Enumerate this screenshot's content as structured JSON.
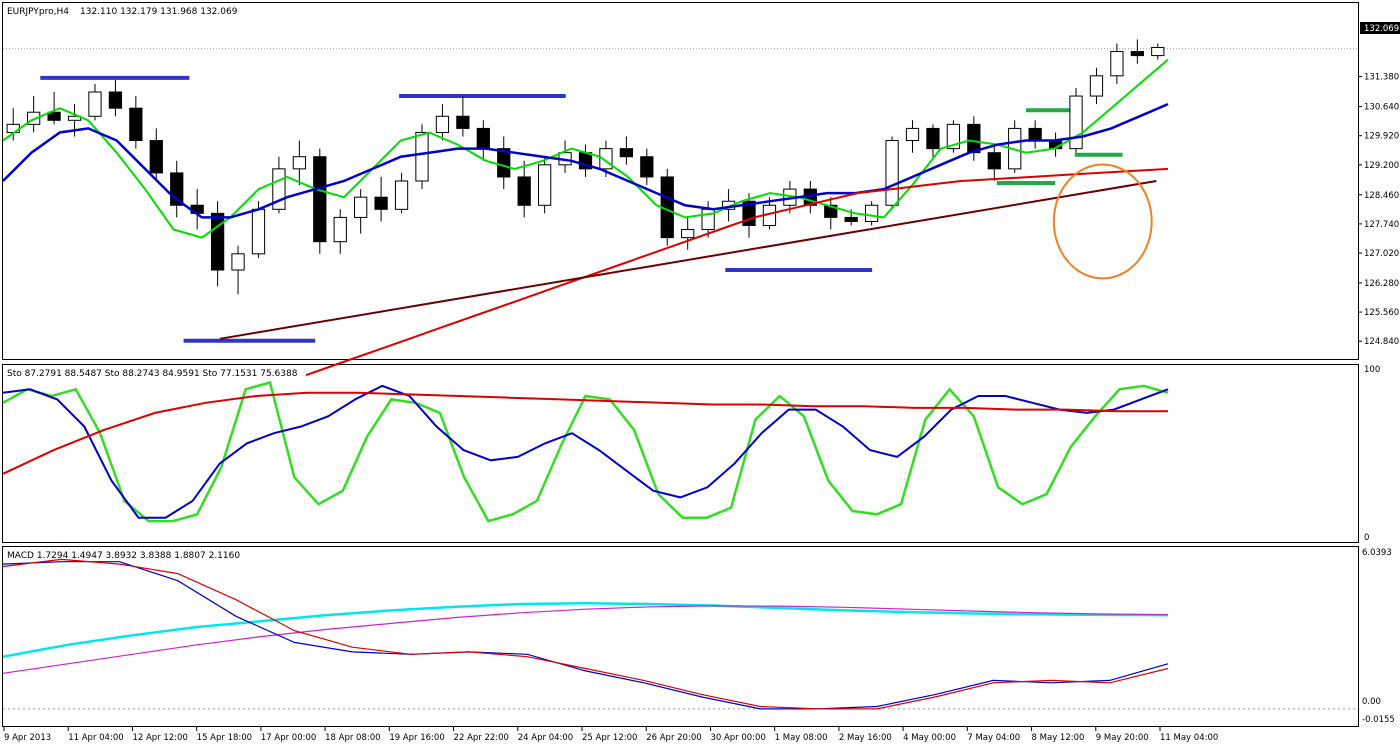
{
  "chart_data": [
    {
      "type": "candlestick",
      "title": "EURJPYpro,H4  132.110 132.179 131.968 132.069",
      "symbol": "EURJPYpro,H4",
      "ohlc_header": "132.110 132.179 131.968 132.069",
      "last_price": "132.069",
      "ylim": [
        124.4,
        133.2
      ],
      "y_ticks": [
        "131.380",
        "130.640",
        "129.920",
        "129.200",
        "128.460",
        "127.740",
        "127.020",
        "126.280",
        "125.560",
        "124.840"
      ],
      "ohlc": [
        [
          130.0,
          130.6,
          129.8,
          130.2
        ],
        [
          130.2,
          130.9,
          130.0,
          130.5
        ],
        [
          130.5,
          131.0,
          130.2,
          130.3
        ],
        [
          130.3,
          130.7,
          129.9,
          130.4
        ],
        [
          130.4,
          131.2,
          130.3,
          131.0
        ],
        [
          131.0,
          131.3,
          130.4,
          130.6
        ],
        [
          130.6,
          130.9,
          129.6,
          129.8
        ],
        [
          129.8,
          130.1,
          128.8,
          129.0
        ],
        [
          129.0,
          129.3,
          127.9,
          128.2
        ],
        [
          128.2,
          128.6,
          127.6,
          128.0
        ],
        [
          128.0,
          128.3,
          126.2,
          126.6
        ],
        [
          126.6,
          127.2,
          126.0,
          127.0
        ],
        [
          127.0,
          128.3,
          126.9,
          128.1
        ],
        [
          128.1,
          129.4,
          128.0,
          129.1
        ],
        [
          129.1,
          129.8,
          128.7,
          129.4
        ],
        [
          129.4,
          129.6,
          127.0,
          127.3
        ],
        [
          127.3,
          128.1,
          127.0,
          127.9
        ],
        [
          127.9,
          128.6,
          127.5,
          128.4
        ],
        [
          128.4,
          128.9,
          127.8,
          128.1
        ],
        [
          128.1,
          129.0,
          128.0,
          128.8
        ],
        [
          128.8,
          130.2,
          128.6,
          130.0
        ],
        [
          130.0,
          130.7,
          129.8,
          130.4
        ],
        [
          130.4,
          130.9,
          129.9,
          130.1
        ],
        [
          130.1,
          130.3,
          129.3,
          129.6
        ],
        [
          129.6,
          129.9,
          128.6,
          128.9
        ],
        [
          128.9,
          129.3,
          127.9,
          128.2
        ],
        [
          128.2,
          129.4,
          128.0,
          129.2
        ],
        [
          129.2,
          129.8,
          129.0,
          129.5
        ],
        [
          129.5,
          129.7,
          128.9,
          129.1
        ],
        [
          129.1,
          129.8,
          128.9,
          129.6
        ],
        [
          129.6,
          129.9,
          129.2,
          129.4
        ],
        [
          129.4,
          129.6,
          128.7,
          128.9
        ],
        [
          128.9,
          129.1,
          127.2,
          127.4
        ],
        [
          127.4,
          127.9,
          127.1,
          127.6
        ],
        [
          127.6,
          128.3,
          127.4,
          128.1
        ],
        [
          128.1,
          128.6,
          127.8,
          128.3
        ],
        [
          128.3,
          128.5,
          127.4,
          127.7
        ],
        [
          127.7,
          128.4,
          127.6,
          128.2
        ],
        [
          128.2,
          128.8,
          128.0,
          128.6
        ],
        [
          128.6,
          128.8,
          128.0,
          128.2
        ],
        [
          128.2,
          128.4,
          127.6,
          127.9
        ],
        [
          127.9,
          128.1,
          127.7,
          127.8
        ],
        [
          127.8,
          128.3,
          127.7,
          128.2
        ],
        [
          128.2,
          129.9,
          128.1,
          129.8
        ],
        [
          129.8,
          130.3,
          129.5,
          130.1
        ],
        [
          130.1,
          130.2,
          129.4,
          129.6
        ],
        [
          129.6,
          130.3,
          129.5,
          130.2
        ],
        [
          130.2,
          130.4,
          129.3,
          129.5
        ],
        [
          129.5,
          129.7,
          128.8,
          129.1
        ],
        [
          129.1,
          130.3,
          129.0,
          130.1
        ],
        [
          130.1,
          130.3,
          129.6,
          129.8
        ],
        [
          129.8,
          130.0,
          129.4,
          129.6
        ],
        [
          129.6,
          131.1,
          129.5,
          130.9
        ],
        [
          130.9,
          131.6,
          130.7,
          131.4
        ],
        [
          131.4,
          132.2,
          131.2,
          132.0
        ],
        [
          132.0,
          132.3,
          131.7,
          131.9
        ],
        [
          131.9,
          132.2,
          131.8,
          132.1
        ]
      ],
      "series": [
        {
          "name": "",
          "color": "#00dd00",
          "values": [
            129.8,
            130.3,
            130.6,
            130.3,
            129.5,
            128.6,
            127.6,
            127.4,
            127.9,
            128.6,
            128.9,
            128.6,
            128.4,
            129.1,
            129.8,
            130.0,
            129.7,
            129.3,
            129.1,
            129.3,
            129.6,
            129.4,
            128.9,
            128.2,
            127.9,
            128.0,
            128.3,
            128.5,
            128.4,
            128.2,
            128.0,
            127.9,
            128.7,
            129.6,
            129.8,
            129.7,
            129.5,
            129.6,
            130.0,
            130.6,
            131.2,
            131.8
          ]
        },
        {
          "name": "",
          "color": "#0000cc",
          "values": [
            128.8,
            129.5,
            130.0,
            130.1,
            129.8,
            129.1,
            128.4,
            127.9,
            127.9,
            128.1,
            128.4,
            128.6,
            128.8,
            129.1,
            129.4,
            129.5,
            129.6,
            129.6,
            129.5,
            129.4,
            129.3,
            129.1,
            128.8,
            128.5,
            128.2,
            128.1,
            128.2,
            128.3,
            128.4,
            128.5,
            128.5,
            128.6,
            128.9,
            129.2,
            129.5,
            129.7,
            129.8,
            129.8,
            129.9,
            130.1,
            130.4,
            130.7
          ]
        },
        {
          "name": "",
          "color": "#dd0000",
          "values": [
            124.0,
            124.3,
            124.6,
            124.9,
            125.2,
            125.5,
            125.8,
            126.1,
            126.4,
            126.7,
            127.0,
            127.3,
            127.6,
            127.9,
            128.1,
            128.3,
            128.5,
            128.6,
            128.7,
            128.8,
            128.85,
            128.9,
            128.95,
            129.0,
            129.05,
            129.1
          ]
        },
        {
          "name": "",
          "color": "#6b0000",
          "values": [
            124.9,
            128.8
          ]
        }
      ],
      "lines": [
        {
          "name": "",
          "color": "#3333cc",
          "values": [
            131.35,
            131.35
          ]
        },
        {
          "name": "",
          "color": "#3333cc",
          "values": [
            130.9,
            130.9
          ]
        },
        {
          "name": "",
          "color": "#3333cc",
          "values": [
            124.85,
            124.85
          ]
        },
        {
          "name": "",
          "color": "#3333cc",
          "values": [
            126.6,
            126.6
          ]
        },
        {
          "name": "",
          "color": "#22aa44",
          "values": [
            130.55,
            130.55
          ]
        },
        {
          "name": "",
          "color": "#22aa44",
          "values": [
            129.45,
            129.45
          ]
        },
        {
          "name": "",
          "color": "#22aa44",
          "values": [
            128.75,
            128.75
          ]
        }
      ],
      "annotations": [
        {
          "shape": "ellipse",
          "color": "#f08020"
        }
      ]
    },
    {
      "type": "line",
      "title": "Sto 87.2791 88.5487  Sto 88.2743 84.9591  Sto 77.1531 75.6388",
      "ylim": [
        0,
        100
      ],
      "y_ticks": [
        "100",
        "0"
      ],
      "series": [
        {
          "name": "",
          "color": "#33dd22",
          "values": [
            80,
            88,
            84,
            88,
            62,
            22,
            10,
            10,
            14,
            42,
            88,
            92,
            36,
            20,
            28,
            60,
            82,
            80,
            74,
            36,
            10,
            14,
            22,
            55,
            84,
            82,
            64,
            26,
            12,
            12,
            18,
            70,
            84,
            72,
            34,
            16,
            14,
            20,
            70,
            88,
            72,
            30,
            20,
            26,
            54,
            72,
            88,
            90,
            86
          ]
        },
        {
          "name": "",
          "color": "#0000cc",
          "values": [
            86,
            88,
            82,
            66,
            34,
            12,
            12,
            22,
            44,
            56,
            62,
            66,
            72,
            82,
            90,
            84,
            66,
            52,
            46,
            48,
            56,
            62,
            52,
            40,
            28,
            24,
            30,
            44,
            62,
            76,
            76,
            66,
            52,
            48,
            60,
            76,
            84,
            84,
            80,
            76,
            74,
            76,
            82,
            88
          ]
        },
        {
          "name": "",
          "color": "#dd0000",
          "values": [
            38,
            52,
            64,
            74,
            80,
            84,
            86,
            86,
            85,
            84,
            83,
            82,
            81,
            80,
            79,
            79,
            78,
            78,
            77,
            77,
            76,
            76,
            75,
            75
          ]
        }
      ]
    },
    {
      "type": "line",
      "title": "MACD 1.7294 1.4947 3.8932 3.8388 1.8807 2.1160",
      "ylim": [
        -0.0155,
        6.0393
      ],
      "y_ticks": [
        "6.0393",
        "0.00",
        "-0.0155"
      ],
      "series": [
        {
          "name": "",
          "color": "#00e5ee",
          "values": [
            2.2,
            2.7,
            3.1,
            3.45,
            3.7,
            3.95,
            4.15,
            4.3,
            4.42,
            4.45,
            4.42,
            4.35,
            4.25,
            4.15,
            4.08,
            4.02,
            3.98,
            3.96,
            3.95
          ]
        },
        {
          "name": "",
          "color": "#cc22cc",
          "values": [
            1.5,
            1.9,
            2.3,
            2.7,
            3.05,
            3.35,
            3.6,
            3.85,
            4.05,
            4.2,
            4.3,
            4.34,
            4.33,
            4.28,
            4.2,
            4.12,
            4.05,
            4.0,
            3.97
          ]
        },
        {
          "name": "",
          "color": "#0000cc",
          "values": [
            6.1,
            6.2,
            6.2,
            5.4,
            3.9,
            2.8,
            2.4,
            2.3,
            2.4,
            2.3,
            1.6,
            1.1,
            0.5,
            0.0,
            0.0,
            0.1,
            0.6,
            1.2,
            1.1,
            1.2,
            1.9
          ]
        },
        {
          "name": "",
          "color": "#dd0000",
          "values": [
            6.0,
            6.3,
            6.1,
            5.7,
            4.6,
            3.3,
            2.6,
            2.3,
            2.4,
            2.2,
            1.7,
            1.2,
            0.6,
            0.1,
            0.0,
            0.0,
            0.5,
            1.1,
            1.2,
            1.1,
            1.7
          ]
        }
      ]
    }
  ],
  "x_ticks": [
    "9 Apr 2013",
    "11 Apr 04:00",
    "12 Apr 12:00",
    "15 Apr 18:00",
    "17 Apr 00:00",
    "18 Apr 08:00",
    "19 Apr 16:00",
    "22 Apr 22:00",
    "24 Apr 04:00",
    "25 Apr 12:00",
    "26 Apr 20:00",
    "30 Apr 00:00",
    "1 May 08:00",
    "2 May 16:00",
    "4 May 00:00",
    "7 May 04:00",
    "8 May 12:00",
    "9 May 20:00",
    "11 May 04:00"
  ]
}
